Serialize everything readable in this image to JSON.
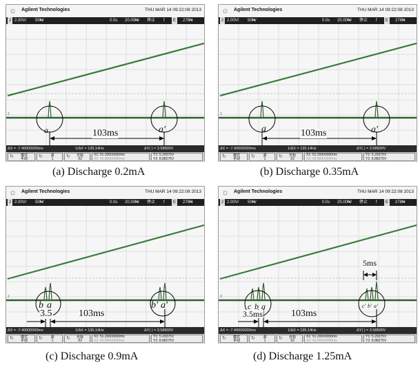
{
  "panels": [
    {
      "header": {
        "brand": "Agilent Technologies",
        "datetime": "THU MAR 14 09:22:08 2013"
      },
      "status": {
        "ch_scale": "2.00V/",
        "ch_num": "2",
        "timebase": "50₦/",
        "offset": "0.0s",
        "time_div": "20.00₦/",
        "run_state": "停止",
        "trig": "f",
        "ch_box": "E",
        "trig_level": "278₦"
      },
      "meas": {
        "dx": "ΔX = -7.40000000ms",
        "freq": "1/ΔX = 135.14Hz",
        "dy": "ΔY(  ) = 3.58900V"
      },
      "softkeys": {
        "mode": "模式",
        "mode_sub": "手动",
        "source": "源",
        "source_sub": "1",
        "cursor": "光标",
        "cursor_sub": "X2",
        "x1": "X1: 51.20000000ms",
        "x2": "X2: 43.80000000ms",
        "y1": "Y1: 5.29375V",
        "y2": "Y2: 8.88275V"
      },
      "labels": {
        "a": "a",
        "a_prime": "a'",
        "dist": "103ms"
      },
      "caption": "(a) Discharge 0.2mA"
    },
    {
      "header": {
        "brand": "Agilent Technologies",
        "datetime": "THU MAR 14 09:22:08 2013"
      },
      "status": {
        "ch_scale": "2.00V/",
        "ch_num": "2",
        "timebase": "50₦/",
        "offset": "0.0s",
        "time_div": "20.00₦/",
        "run_state": "停止",
        "trig": "f",
        "ch_box": "E",
        "trig_level": "278₦"
      },
      "meas": {
        "dx": "ΔX = -7.40000000ms",
        "freq": "1/ΔX = 135.14Hz",
        "dy": "ΔY(  ) = 3.58900V"
      },
      "softkeys": {
        "mode": "模式",
        "mode_sub": "手动",
        "source": "源",
        "source_sub": "1",
        "cursor": "光标",
        "cursor_sub": "X2",
        "x1": "X1: 51.20000000ms",
        "x2": "X2: 43.80000000ms",
        "y1": "Y1: 5.29375V",
        "y2": "Y2: 8.88275V"
      },
      "labels": {
        "a": "a",
        "a_prime": "a'",
        "dist": "103ms"
      },
      "caption": "(b) Discharge 0.35mA"
    },
    {
      "header": {
        "brand": "Agilent Technologies",
        "datetime": "THU MAR 14 09:22:08 2013"
      },
      "status": {
        "ch_scale": "2.00V/",
        "ch_num": "2",
        "timebase": "50₦/",
        "offset": "0.0s",
        "time_div": "20.00₦/",
        "run_state": "停止",
        "trig": "f",
        "ch_box": "E",
        "trig_level": "278₦"
      },
      "meas": {
        "dx": "ΔX = -7.40000000ms",
        "freq": "1/ΔX = 135.14Hz",
        "dy": "ΔY(  ) = 3.58900V"
      },
      "softkeys": {
        "mode": "模式",
        "mode_sub": "手动",
        "source": "源",
        "source_sub": "1",
        "cursor": "光标",
        "cursor_sub": "X2",
        "x1": "X1: 51.20000000ms",
        "x2": "X2: 43.80000000ms",
        "y1": "Y1: 5.29375V",
        "y2": "Y2: 8.88275V"
      },
      "labels": {
        "b": "b",
        "a": "a",
        "b_prime": "b'",
        "a_prime": "a'",
        "gap": "3.5",
        "dist": "103ms"
      },
      "caption": "(c) Discharge 0.9mA"
    },
    {
      "header": {
        "brand": "Agilent Technologies",
        "datetime": "THU MAR 14 09:22:08 2013"
      },
      "status": {
        "ch_scale": "2.00V/",
        "ch_num": "2",
        "timebase": "50₦/",
        "offset": "0.0s",
        "time_div": "20.00₦/",
        "run_state": "停止",
        "trig": "f",
        "ch_box": "E",
        "trig_level": "278₦"
      },
      "meas": {
        "dx": "ΔX = -7.40000000ms",
        "freq": "1/ΔX = 135.14Hz",
        "dy": "ΔY(  ) = 3.58900V"
      },
      "softkeys": {
        "mode": "模式",
        "mode_sub": "手动",
        "source": "源",
        "source_sub": "1",
        "cursor": "光标",
        "cursor_sub": "X2",
        "x1": "X1: 51.20000000ms",
        "x2": "X2: 43.80000000ms",
        "y1": "Y1: 5.29375V",
        "y2": "Y2: 8.88275V"
      },
      "labels": {
        "c": "c",
        "b": "b",
        "a": "a",
        "c_prime": "c'",
        "b_prime": "b'",
        "a_prime": "a'",
        "gap": "3.5ms",
        "dist": "103ms",
        "width": "5ms"
      },
      "caption": "(d) Discharge 1.25mA"
    }
  ],
  "colors": {
    "trace": "#3a7a3a",
    "noise": "#2f5f2f",
    "grid": "#c8c8c8",
    "annot": "#000000"
  }
}
